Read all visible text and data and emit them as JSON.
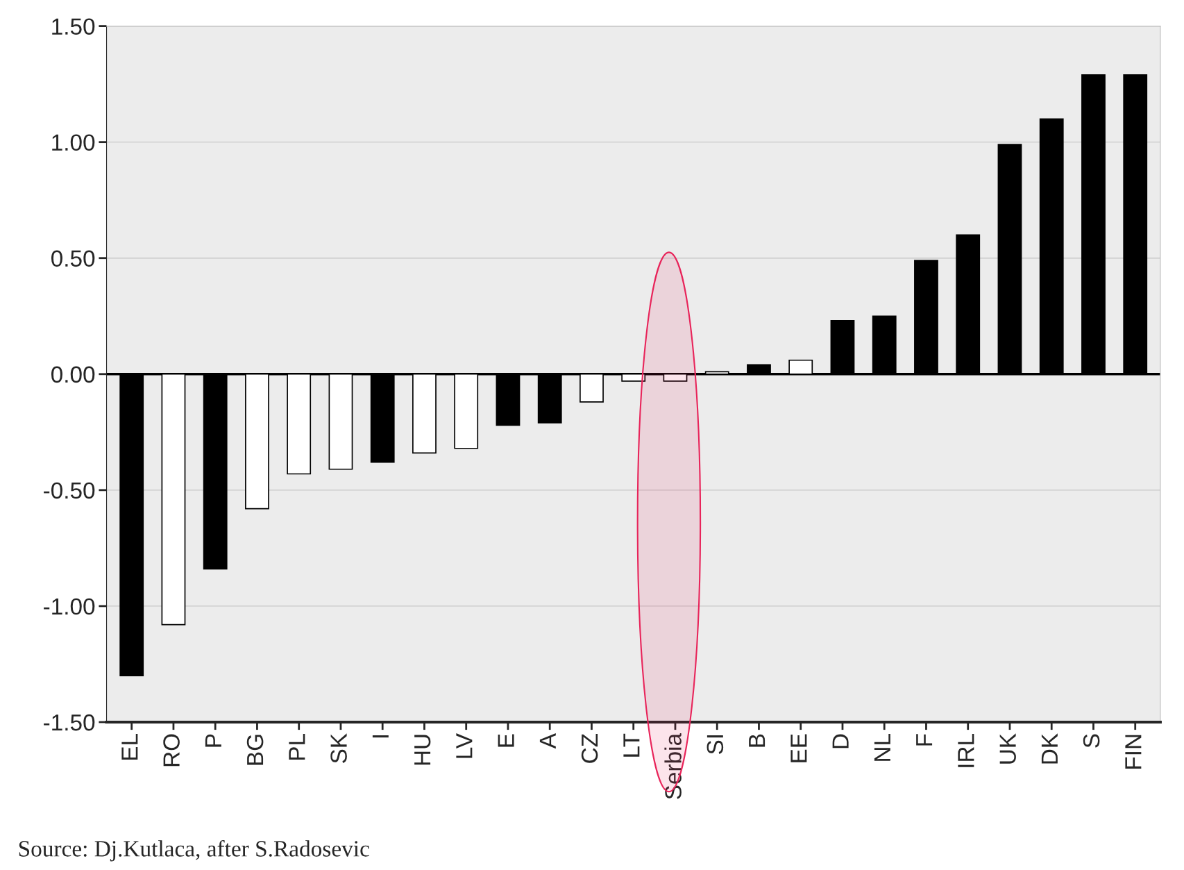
{
  "chart_data": {
    "type": "bar",
    "categories": [
      "EL",
      "RO",
      "P",
      "BG",
      "PL",
      "SK",
      "I",
      "HU",
      "LV",
      "E",
      "A",
      "CZ",
      "LT",
      "Serbia",
      "SI",
      "B",
      "EE",
      "D",
      "NL",
      "F",
      "IRL",
      "UK",
      "DK",
      "S",
      "FIN"
    ],
    "values": [
      -1.3,
      -1.08,
      -0.84,
      -0.58,
      -0.43,
      -0.41,
      -0.38,
      -0.34,
      -0.32,
      -0.22,
      -0.21,
      -0.12,
      -0.03,
      -0.03,
      0.01,
      0.04,
      0.06,
      0.23,
      0.25,
      0.49,
      0.6,
      0.99,
      1.1,
      1.29,
      1.29
    ],
    "colors": [
      "#000000",
      "#ffffff",
      "#000000",
      "#ffffff",
      "#ffffff",
      "#ffffff",
      "#000000",
      "#ffffff",
      "#ffffff",
      "#000000",
      "#000000",
      "#ffffff",
      "#ffffff",
      "#ffffff",
      "#ffffff",
      "#000000",
      "#ffffff",
      "#000000",
      "#000000",
      "#000000",
      "#000000",
      "#000000",
      "#000000",
      "#000000",
      "#000000"
    ],
    "ylim": [
      -1.5,
      1.5
    ],
    "yticks": [
      {
        "value": -1.5,
        "label": "-1.50"
      },
      {
        "value": -1.0,
        "label": "-1.00"
      },
      {
        "value": -0.5,
        "label": "-0.50"
      },
      {
        "value": 0,
        "label": "0.00"
      },
      {
        "value": 0.5,
        "label": "0.50"
      },
      {
        "value": 1.0,
        "label": "1.00"
      },
      {
        "value": 1.5,
        "label": "1.50"
      }
    ],
    "grid": "y",
    "ref_lines": [
      {
        "axis": "y",
        "value": 0,
        "color": "#000000"
      }
    ],
    "annotations": [
      "Source: Dj.Kutlaca, after S.Radosevic"
    ]
  }
}
